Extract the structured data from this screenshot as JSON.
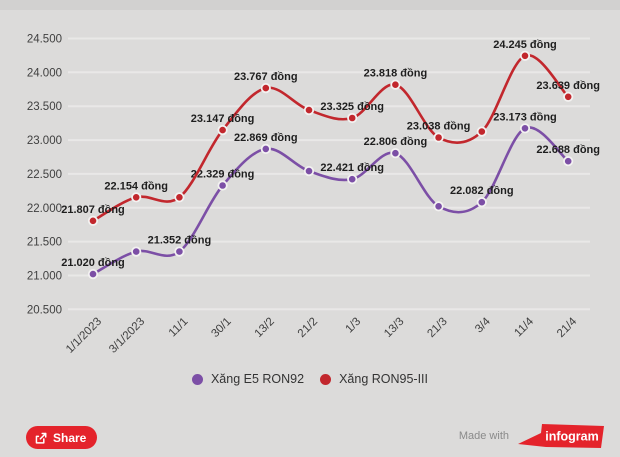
{
  "colors": {
    "background": "#dcdbda",
    "top_strip": "#d2d1d0",
    "gridline": "#e9e8e7",
    "series_purple": "#7c4fa6",
    "series_red": "#c2272d",
    "accent_red": "#e4232b",
    "marker_ring": "#f3f2f1"
  },
  "chart_data": {
    "type": "line",
    "title": "",
    "xlabel": "",
    "ylabel": "",
    "categories": [
      "1/1/2023",
      "3/1/2023",
      "11/1",
      "30/1",
      "13/2",
      "21/2",
      "1/3",
      "13/3",
      "21/3",
      "3/4",
      "11/4",
      "21/4"
    ],
    "series": [
      {
        "name": "Xăng E5 RON92",
        "color": "#7c4fa6",
        "values": [
          21020,
          21352,
          21352,
          22329,
          22869,
          22542,
          22421,
          22806,
          22022,
          22082,
          23173,
          22688
        ],
        "point_labels": [
          "21.020 đồng",
          null,
          "21.352 đồng",
          "22.329 đồng",
          "22.869 đồng",
          null,
          "22.421 đồng",
          "22.806 đồng",
          null,
          "22.082 đồng",
          "23.173 đồng",
          "22.688 đồng"
        ]
      },
      {
        "name": "Xăng RON95-III",
        "color": "#c2272d",
        "values": [
          21807,
          22154,
          22154,
          23147,
          23767,
          23443,
          23325,
          23818,
          23038,
          23125,
          24245,
          23639
        ],
        "point_labels": [
          "21.807 đồng",
          "22.154 đồng",
          null,
          "23.147 đồng",
          "23.767 đồng",
          null,
          "23.325 đồng",
          "23.818 đồng",
          "23.038 đồng",
          null,
          "24.245 đồng",
          "23.639 đồng"
        ]
      }
    ],
    "ylim": [
      20500,
      24500
    ],
    "ytick_step": 500,
    "ytick_labels": [
      "24.500",
      "24.000",
      "23.500",
      "23.000",
      "22.500",
      "22.000",
      "21.500",
      "21.000",
      "20.500"
    ],
    "grid": true,
    "legend_position": "bottom-center",
    "unit": "đồng"
  },
  "legend": {
    "items": [
      {
        "label": "Xăng E5 RON92",
        "color": "#7c4fa6"
      },
      {
        "label": "Xăng RON95-III",
        "color": "#c2272d"
      }
    ]
  },
  "footer": {
    "share_label": "Share",
    "made_with": "Made with",
    "brand": "infogram"
  }
}
